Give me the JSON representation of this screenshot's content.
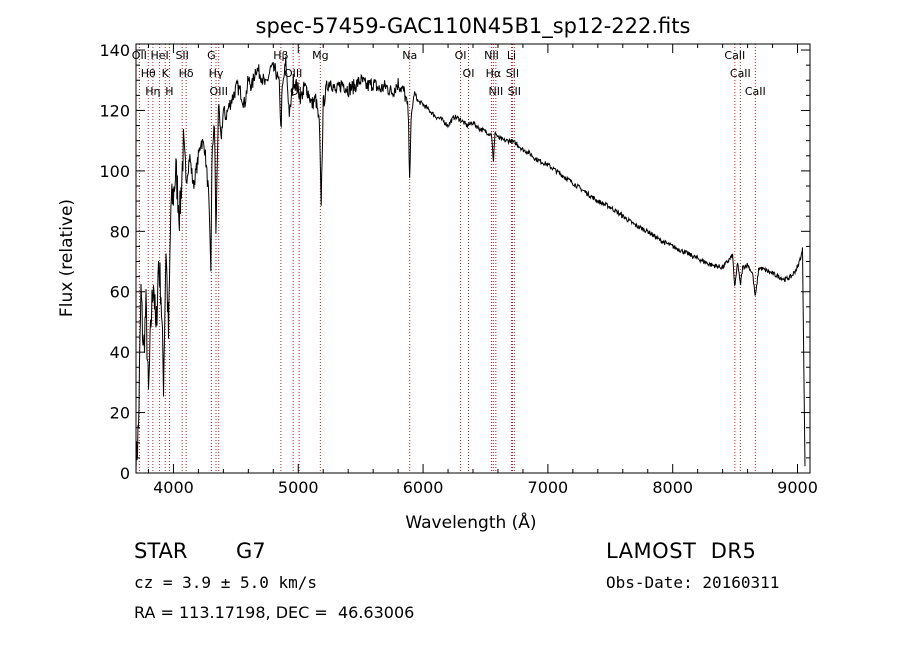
{
  "chart_data": {
    "type": "line",
    "title": "spec-57459-GAC110N45B1_sp12-222.fits",
    "xlabel": "Wavelength (Å)",
    "ylabel": "Flux (relative)",
    "xlim": [
      3700,
      9100
    ],
    "ylim": [
      0,
      142
    ],
    "xticks": [
      4000,
      5000,
      6000,
      7000,
      8000,
      9000
    ],
    "yticks": [
      0,
      20,
      40,
      60,
      80,
      100,
      120,
      140
    ],
    "grid": false,
    "line_color": "#000000",
    "marker_color": "#b22222",
    "series": [
      {
        "x": [
          3700,
          3720,
          3740,
          3760,
          3780,
          3800,
          3820,
          3840,
          3860,
          3880,
          3900,
          3920,
          3940,
          3960,
          3980,
          4000,
          4020,
          4050,
          4080,
          4100,
          4130,
          4160,
          4190,
          4220,
          4250,
          4280,
          4300,
          4310,
          4330,
          4340,
          4360,
          4380,
          4400,
          4420,
          4450,
          4480,
          4510,
          4540,
          4570,
          4600,
          4630,
          4660,
          4700,
          4740,
          4780,
          4820,
          4850,
          4861,
          4870,
          4900,
          4930,
          4960,
          4990,
          5020,
          5050,
          5080,
          5110,
          5140,
          5170,
          5183,
          5200,
          5230,
          5260,
          5300,
          5350,
          5400,
          5450,
          5500,
          5550,
          5600,
          5650,
          5700,
          5750,
          5800,
          5850,
          5880,
          5893,
          5905,
          5930,
          5960,
          6000,
          6050,
          6100,
          6150,
          6200,
          6250,
          6300,
          6350,
          6400,
          6450,
          6500,
          6550,
          6563,
          6575,
          6600,
          6650,
          6700,
          6750,
          6800,
          6850,
          6900,
          6950,
          7000,
          7100,
          7200,
          7300,
          7400,
          7500,
          7600,
          7700,
          7800,
          7900,
          8000,
          8100,
          8200,
          8300,
          8400,
          8480,
          8498,
          8520,
          8542,
          8560,
          8600,
          8640,
          8662,
          8690,
          8750,
          8800,
          8850,
          8900,
          8950,
          9000,
          9030,
          9040,
          9060
        ],
        "y": [
          2,
          15,
          60,
          40,
          55,
          25,
          50,
          65,
          45,
          70,
          60,
          30,
          75,
          45,
          88,
          92,
          100,
          85,
          108,
          96,
          105,
          95,
          102,
          110,
          108,
          93,
          68,
          108,
          115,
          78,
          122,
          110,
          120,
          118,
          122,
          125,
          128,
          126,
          122,
          130,
          128,
          134,
          132,
          128,
          134,
          133,
          128,
          112,
          126,
          136,
          118,
          130,
          128,
          124,
          128,
          126,
          122,
          124,
          115,
          88,
          122,
          128,
          130,
          126,
          129,
          127,
          128,
          130,
          128,
          129,
          127,
          128,
          126,
          129,
          126,
          120,
          98,
          118,
          126,
          123,
          122,
          120,
          118,
          117,
          115,
          118,
          117,
          115,
          116,
          114,
          113,
          112,
          102,
          113,
          111,
          110,
          110,
          109,
          107,
          106,
          104,
          103,
          102,
          99,
          96,
          93,
          90,
          88,
          85,
          82,
          80,
          77,
          75,
          73,
          71,
          69,
          68,
          72,
          61,
          70,
          62,
          68,
          69,
          66,
          58,
          68,
          67,
          66,
          65,
          64,
          65,
          68,
          72,
          74,
          2
        ]
      }
    ],
    "line_labels": [
      {
        "x": 3727,
        "label": "OII"
      },
      {
        "x": 3798,
        "label": "Hθ"
      },
      {
        "x": 3835,
        "label": "Hη"
      },
      {
        "x": 3889,
        "label": "HeI"
      },
      {
        "x": 3934,
        "label": "K"
      },
      {
        "x": 3968,
        "label": "H"
      },
      {
        "x": 4070,
        "label": "SII"
      },
      {
        "x": 4102,
        "label": "Hδ"
      },
      {
        "x": 4304,
        "label": "G"
      },
      {
        "x": 4341,
        "label": "Hγ"
      },
      {
        "x": 4363,
        "label": "OIII"
      },
      {
        "x": 4861,
        "label": "Hβ"
      },
      {
        "x": 4959,
        "label": "OIII"
      },
      {
        "x": 5007,
        "label": "OIII"
      },
      {
        "x": 5177,
        "label": "Mg"
      },
      {
        "x": 5893,
        "label": "Na"
      },
      {
        "x": 6300,
        "label": "OI"
      },
      {
        "x": 6364,
        "label": "OI"
      },
      {
        "x": 6548,
        "label": "NII"
      },
      {
        "x": 6563,
        "label": "Hα"
      },
      {
        "x": 6583,
        "label": "NII"
      },
      {
        "x": 6708,
        "label": "Li"
      },
      {
        "x": 6716,
        "label": "SII"
      },
      {
        "x": 6731,
        "label": "SII"
      },
      {
        "x": 8498,
        "label": "CaII"
      },
      {
        "x": 8542,
        "label": "CaII"
      },
      {
        "x": 8662,
        "label": "CaII"
      }
    ]
  },
  "info": {
    "object_type": "STAR",
    "object_class": "G7",
    "survey": "LAMOST  DR5",
    "cz": "cz = 3.9 ± 5.0 km/s",
    "obs_date": "Obs-Date: 20160311",
    "radec": "RA = 113.17198, DEC =  46.63006"
  }
}
